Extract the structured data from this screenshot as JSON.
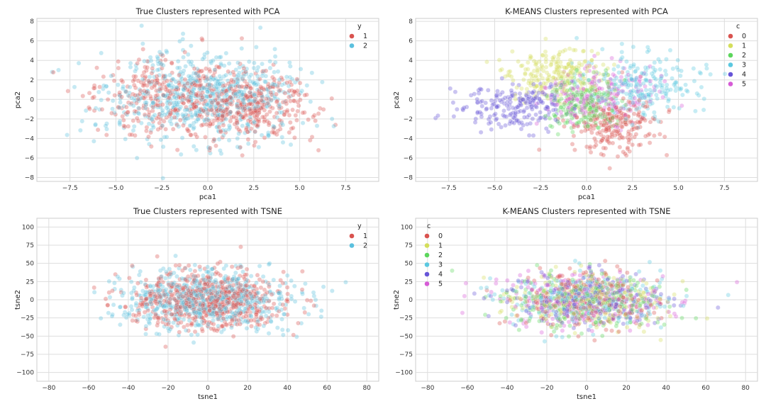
{
  "chart_data": [
    {
      "type": "scatter",
      "title": "True Clusters represented with PCA",
      "xlabel": "pca1",
      "ylabel": "pca2",
      "xlim": [
        -9.3,
        9.3
      ],
      "ylim": [
        -8.4,
        8.3
      ],
      "xticks": [
        -7.5,
        -5.0,
        -2.5,
        0.0,
        2.5,
        5.0,
        7.5
      ],
      "yticks": [
        -8,
        -6,
        -4,
        -2,
        0,
        2,
        4,
        6,
        8
      ],
      "grid": true,
      "legend": {
        "title": "y",
        "placement": "top-right"
      },
      "series": [
        {
          "name": "1",
          "color": "#d9534f",
          "n": 700,
          "groups": [
            {
              "cx": 2.2,
              "cy": -0.6,
              "sx": 1.7,
              "sy": 1.8,
              "w": 0.6
            },
            {
              "cx": -2.4,
              "cy": 0.4,
              "sx": 1.8,
              "sy": 1.9,
              "w": 0.4
            }
          ]
        },
        {
          "name": "2",
          "color": "#5bc0de",
          "n": 700,
          "groups": [
            {
              "cx": -0.3,
              "cy": 0.2,
              "sx": 2.6,
              "sy": 2.2,
              "w": 1.0
            }
          ]
        }
      ]
    },
    {
      "type": "scatter",
      "title": "K-MEANS Clusters represented with PCA",
      "xlabel": "pca1",
      "ylabel": "pca2",
      "xlim": [
        -9.3,
        9.3
      ],
      "ylim": [
        -8.4,
        8.3
      ],
      "xticks": [
        -7.5,
        -5.0,
        -2.5,
        0.0,
        2.5,
        5.0,
        7.5
      ],
      "yticks": [
        -8,
        -6,
        -4,
        -2,
        0,
        2,
        4,
        6,
        8
      ],
      "grid": true,
      "legend": {
        "title": "c",
        "placement": "top-right"
      },
      "series": [
        {
          "name": "0",
          "color": "#d9534f",
          "n": 240,
          "groups": [
            {
              "cx": 1.5,
              "cy": -2.6,
              "sx": 1.2,
              "sy": 1.5,
              "w": 1
            }
          ]
        },
        {
          "name": "1",
          "color": "#d4de5b",
          "n": 240,
          "groups": [
            {
              "cx": -1.6,
              "cy": 2.6,
              "sx": 1.3,
              "sy": 1.4,
              "w": 1
            }
          ]
        },
        {
          "name": "2",
          "color": "#5cd65c",
          "n": 220,
          "groups": [
            {
              "cx": -0.2,
              "cy": -0.5,
              "sx": 1.0,
              "sy": 1.3,
              "w": 1
            }
          ]
        },
        {
          "name": "3",
          "color": "#5bc8e0",
          "n": 240,
          "groups": [
            {
              "cx": 3.0,
              "cy": 1.5,
              "sx": 1.5,
              "sy": 1.5,
              "w": 1
            }
          ]
        },
        {
          "name": "4",
          "color": "#6655d8",
          "n": 220,
          "groups": [
            {
              "cx": -3.8,
              "cy": -0.8,
              "sx": 1.6,
              "sy": 1.2,
              "w": 1
            }
          ]
        },
        {
          "name": "5",
          "color": "#d65cd6",
          "n": 200,
          "groups": [
            {
              "cx": 0.8,
              "cy": 0.6,
              "sx": 1.5,
              "sy": 1.5,
              "w": 1
            }
          ]
        }
      ]
    },
    {
      "type": "scatter",
      "title": "True Clusters represented with TSNE",
      "xlabel": "tsne1",
      "ylabel": "tsne2",
      "xlim": [
        -86,
        86
      ],
      "ylim": [
        -112,
        112
      ],
      "xticks": [
        -80,
        -60,
        -40,
        -20,
        0,
        20,
        40,
        60,
        80
      ],
      "yticks": [
        -100,
        -75,
        -50,
        -25,
        0,
        25,
        50,
        75,
        100
      ],
      "grid": true,
      "legend": {
        "title": "y",
        "placement": "top-right"
      },
      "series": [
        {
          "name": "1",
          "color": "#d9534f",
          "n": 700,
          "groups": [
            {
              "cx": 0,
              "cy": 0,
              "sx": 19,
              "sy": 19,
              "w": 1
            }
          ]
        },
        {
          "name": "2",
          "color": "#5bc0de",
          "n": 700,
          "groups": [
            {
              "cx": 0,
              "cy": 0,
              "sx": 21,
              "sy": 20,
              "w": 1
            }
          ]
        }
      ]
    },
    {
      "type": "scatter",
      "title": "K-MEANS Clusters represented with TSNE",
      "xlabel": "tsne1",
      "ylabel": "tsne2",
      "xlim": [
        -86,
        86
      ],
      "ylim": [
        -112,
        112
      ],
      "xticks": [
        -80,
        -60,
        -40,
        -20,
        0,
        20,
        40,
        60,
        80
      ],
      "yticks": [
        -100,
        -75,
        -50,
        -25,
        0,
        25,
        50,
        75,
        100
      ],
      "grid": true,
      "legend": {
        "title": "c",
        "placement": "top-left"
      },
      "series": [
        {
          "name": "0",
          "color": "#d9534f",
          "n": 230,
          "groups": [
            {
              "cx": 0,
              "cy": 0,
              "sx": 20,
              "sy": 19,
              "w": 1
            }
          ]
        },
        {
          "name": "1",
          "color": "#d4de5b",
          "n": 230,
          "groups": [
            {
              "cx": 0,
              "cy": 0,
              "sx": 20,
              "sy": 19,
              "w": 1
            }
          ]
        },
        {
          "name": "2",
          "color": "#5cd65c",
          "n": 230,
          "groups": [
            {
              "cx": 0,
              "cy": 0,
              "sx": 20,
              "sy": 19,
              "w": 1
            }
          ]
        },
        {
          "name": "3",
          "color": "#5bc8e0",
          "n": 230,
          "groups": [
            {
              "cx": 0,
              "cy": 0,
              "sx": 20,
              "sy": 19,
              "w": 1
            }
          ]
        },
        {
          "name": "4",
          "color": "#6655d8",
          "n": 230,
          "groups": [
            {
              "cx": 0,
              "cy": 0,
              "sx": 20,
              "sy": 19,
              "w": 1
            }
          ]
        },
        {
          "name": "5",
          "color": "#d65cd6",
          "n": 230,
          "groups": [
            {
              "cx": 0,
              "cy": 0,
              "sx": 20,
              "sy": 19,
              "w": 1
            }
          ]
        }
      ]
    }
  ]
}
